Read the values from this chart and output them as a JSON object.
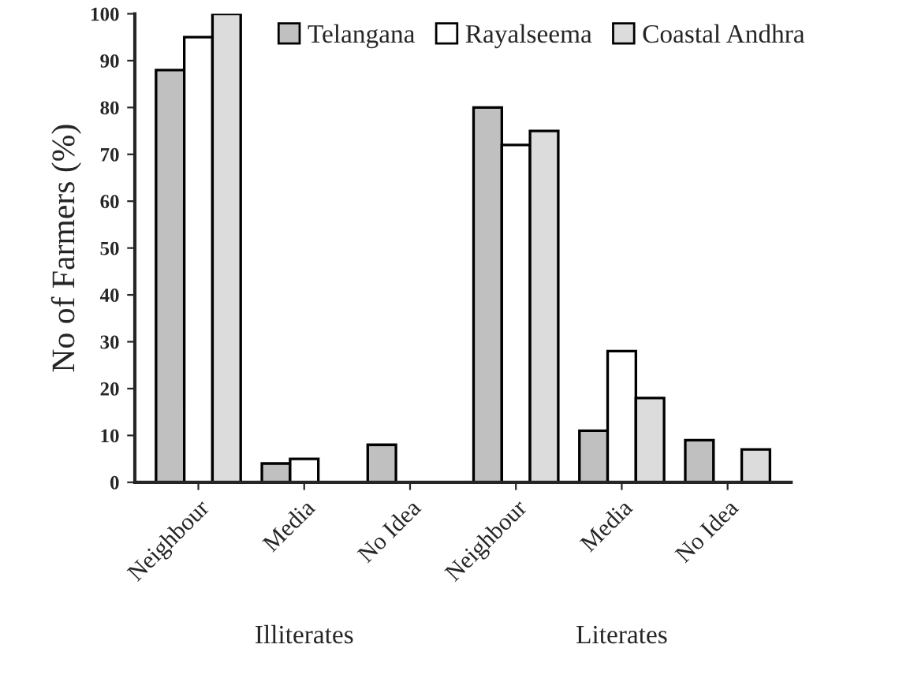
{
  "chart_data": {
    "type": "bar",
    "ylabel": "No of Farmers (%)",
    "categories": [
      "Neighbour",
      "Media",
      "No Idea",
      "Neighbour",
      "Media",
      "No Idea"
    ],
    "series": [
      {
        "name": "Telangana",
        "color": "#c0c0c0",
        "values": [
          88,
          4,
          8,
          80,
          11,
          9
        ]
      },
      {
        "name": "Rayalseema",
        "color": "#ffffff",
        "values": [
          95,
          5,
          0,
          72,
          28,
          0
        ]
      },
      {
        "name": "Coastal Andhra",
        "color": "#dcdcdc",
        "values": [
          100,
          0,
          0,
          75,
          18,
          7
        ]
      }
    ],
    "ylim": [
      0,
      100
    ],
    "yticks": [
      0,
      10,
      20,
      30,
      40,
      50,
      60,
      70,
      80,
      90,
      100
    ],
    "annotations": [
      "Illiterates",
      "Literates"
    ],
    "grid": false,
    "legend": "top"
  }
}
